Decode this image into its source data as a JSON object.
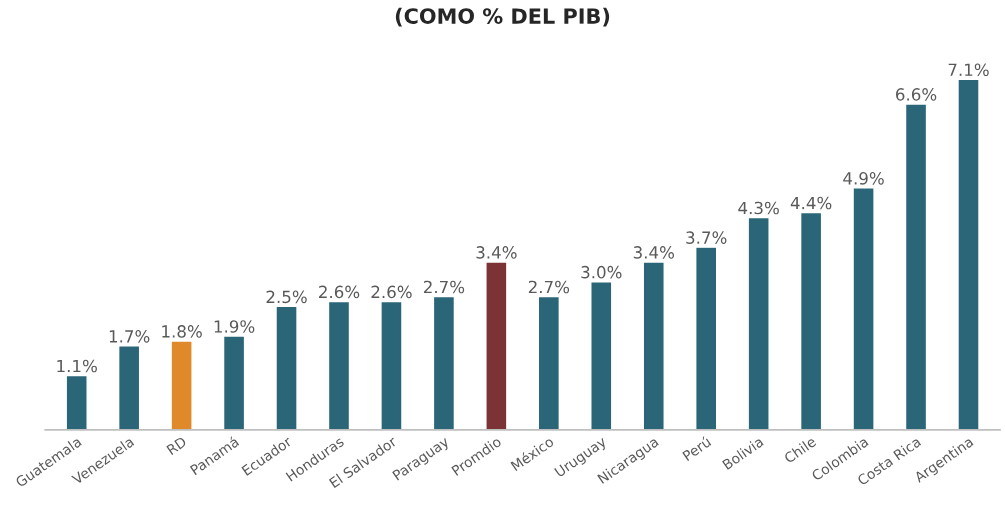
{
  "chart_data": {
    "type": "bar",
    "title": "(COMO % DEL PIB)",
    "categories": [
      "Guatemala",
      "Venezuela",
      "RD",
      "Panamá",
      "Ecuador",
      "Honduras",
      "El Salvador",
      "Paraguay",
      "Promdio",
      "México",
      "Uruguay",
      "Nicaragua",
      "Perú",
      "Bolivia",
      "Chile",
      "Colombia",
      "Costa Rica",
      "Argentina"
    ],
    "values": [
      1.1,
      1.7,
      1.8,
      1.9,
      2.5,
      2.6,
      2.6,
      2.7,
      3.4,
      2.7,
      3.0,
      3.4,
      3.7,
      4.3,
      4.4,
      4.9,
      6.6,
      7.1
    ],
    "value_labels": [
      "1.1%",
      "1.7%",
      "1.8%",
      "1.9%",
      "2.5%",
      "2.6%",
      "2.6%",
      "2.7%",
      "3.4%",
      "2.7%",
      "3.0%",
      "3.4%",
      "3.7%",
      "4.3%",
      "4.4%",
      "4.9%",
      "6.6%",
      "7.1%"
    ],
    "colors": [
      "#2a6677",
      "#2a6677",
      "#e0892b",
      "#2a6677",
      "#2a6677",
      "#2a6677",
      "#2a6677",
      "#2a6677",
      "#7b3336",
      "#2a6677",
      "#2a6677",
      "#2a6677",
      "#2a6677",
      "#2a6677",
      "#2a6677",
      "#2a6677",
      "#2a6677",
      "#2a6677"
    ],
    "grid": false,
    "legend": false
  }
}
